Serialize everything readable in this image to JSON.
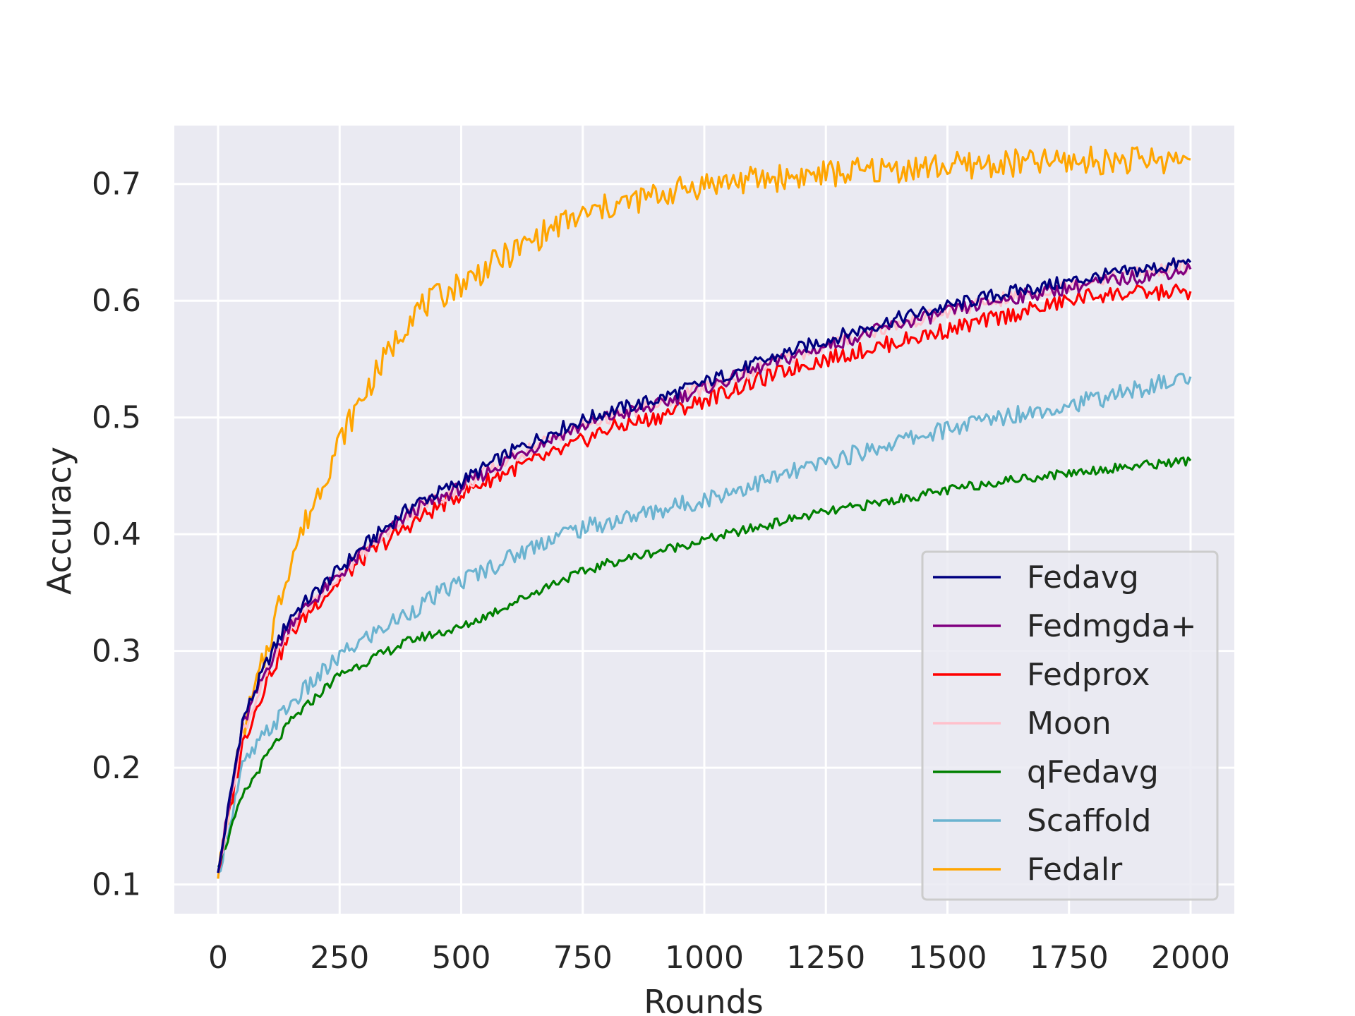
{
  "chart_data": {
    "type": "line",
    "title": "",
    "xlabel": "Rounds",
    "ylabel": "Accuracy",
    "xlim": [
      -90,
      2090
    ],
    "ylim": [
      0.075,
      0.75
    ],
    "xticks": [
      0,
      250,
      500,
      750,
      1000,
      1250,
      1500,
      1750,
      2000
    ],
    "yticks": [
      0.1,
      0.2,
      0.3,
      0.4,
      0.5,
      0.6,
      0.7
    ],
    "xtick_labels": [
      "0",
      "250",
      "500",
      "750",
      "1000",
      "1250",
      "1500",
      "1750",
      "2000"
    ],
    "ytick_labels": [
      "0.1",
      "0.2",
      "0.3",
      "0.4",
      "0.5",
      "0.6",
      "0.7"
    ],
    "grid": true,
    "legend_position": "lower-right",
    "x": [
      0,
      50,
      100,
      150,
      200,
      250,
      300,
      400,
      500,
      600,
      700,
      800,
      900,
      1000,
      1200,
      1400,
      1600,
      1800,
      2000
    ],
    "series": [
      {
        "name": "Fedavg",
        "color": "#000080",
        "values": [
          0.11,
          0.24,
          0.29,
          0.33,
          0.35,
          0.37,
          0.39,
          0.425,
          0.445,
          0.47,
          0.49,
          0.505,
          0.515,
          0.53,
          0.56,
          0.585,
          0.605,
          0.62,
          0.633
        ]
      },
      {
        "name": "Fedmgda+",
        "color": "#800080",
        "values": [
          0.11,
          0.235,
          0.285,
          0.325,
          0.345,
          0.365,
          0.385,
          0.42,
          0.44,
          0.465,
          0.485,
          0.5,
          0.51,
          0.525,
          0.555,
          0.58,
          0.6,
          0.615,
          0.627
        ]
      },
      {
        "name": "Fedprox",
        "color": "#ff0000",
        "values": [
          0.11,
          0.22,
          0.275,
          0.315,
          0.34,
          0.36,
          0.38,
          0.41,
          0.435,
          0.455,
          0.47,
          0.49,
          0.5,
          0.515,
          0.545,
          0.565,
          0.585,
          0.605,
          0.608
        ]
      },
      {
        "name": "Moon",
        "color": "#ffc0cb",
        "values": [
          0.11,
          0.23,
          0.28,
          0.32,
          0.345,
          0.365,
          0.385,
          0.42,
          0.44,
          0.465,
          0.485,
          0.5,
          0.51,
          0.525,
          0.555,
          0.58,
          0.6,
          0.618,
          0.63
        ]
      },
      {
        "name": "qFedavg",
        "color": "#008000",
        "values": [
          0.115,
          0.175,
          0.21,
          0.24,
          0.26,
          0.28,
          0.29,
          0.31,
          0.32,
          0.34,
          0.36,
          0.375,
          0.385,
          0.395,
          0.415,
          0.43,
          0.445,
          0.455,
          0.463
        ]
      },
      {
        "name": "Scaffold",
        "color": "#6bb3d0",
        "values": [
          0.11,
          0.2,
          0.23,
          0.255,
          0.275,
          0.295,
          0.31,
          0.335,
          0.36,
          0.38,
          0.4,
          0.41,
          0.42,
          0.43,
          0.455,
          0.48,
          0.5,
          0.515,
          0.535
        ]
      },
      {
        "name": "Fedalr",
        "color": "#ffa500",
        "values": [
          0.105,
          0.23,
          0.3,
          0.38,
          0.43,
          0.48,
          0.52,
          0.59,
          0.615,
          0.64,
          0.665,
          0.68,
          0.69,
          0.7,
          0.707,
          0.713,
          0.717,
          0.72,
          0.721
        ]
      }
    ]
  }
}
